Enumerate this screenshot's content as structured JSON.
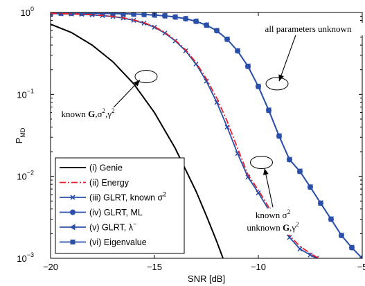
{
  "chart_data": {
    "type": "line",
    "xlabel": "SNR [dB]",
    "ylabel": "P",
    "ylabel_sub": "MD",
    "xlim": [
      -20,
      -5
    ],
    "ylim": [
      0.001,
      1
    ],
    "yscale": "log",
    "x_ticks": [
      -20,
      -15,
      -10,
      -5
    ],
    "x_tick_labels": [
      "−20",
      "−15",
      "−10",
      "−5"
    ],
    "y_ticks": [
      0.001,
      0.01,
      0.1,
      1
    ],
    "y_tick_bases": [
      "10",
      "10",
      "10",
      "10"
    ],
    "y_tick_exps": [
      "−3",
      "−2",
      "−1",
      "0"
    ],
    "grid": false,
    "legend_position": "bottom-left",
    "series": [
      {
        "name": "(i) Genie",
        "color": "#000000",
        "dash": "solid",
        "marker": "none",
        "x": [
          -20,
          -19,
          -18,
          -17,
          -16,
          -15,
          -14,
          -13,
          -12.5,
          -12,
          -11.7
        ],
        "y": [
          0.72,
          0.57,
          0.4,
          0.25,
          0.135,
          0.06,
          0.022,
          0.0066,
          0.0033,
          0.0016,
          0.001
        ]
      },
      {
        "name": "(ii) Energy",
        "color": "#e8202a",
        "dash": "dashdot",
        "marker": "none",
        "x": [
          -20,
          -19.5,
          -19,
          -18.5,
          -18,
          -17.5,
          -17,
          -16.5,
          -16,
          -15.5,
          -15,
          -14.5,
          -14,
          -13.5,
          -13,
          -12.5,
          -12,
          -11.5,
          -11,
          -10.5,
          -10,
          -9.5,
          -9,
          -8.5,
          -8,
          -7.5,
          -7.1
        ],
        "y": [
          0.975,
          0.97,
          0.963,
          0.953,
          0.94,
          0.92,
          0.895,
          0.86,
          0.81,
          0.75,
          0.67,
          0.57,
          0.46,
          0.35,
          0.245,
          0.155,
          0.09,
          0.047,
          0.022,
          0.0105,
          0.0068,
          0.0042,
          0.0028,
          0.0019,
          0.0014,
          0.00115,
          0.001
        ]
      },
      {
        "name": "(iii) GLRT, known σ",
        "name_sup": "2",
        "color": "#2a4fa8",
        "dash": "solid",
        "marker": "x",
        "x": [
          -20,
          -19.5,
          -19,
          -18.5,
          -18,
          -17.5,
          -17,
          -16.5,
          -16,
          -15.5,
          -15,
          -14.5,
          -14,
          -13.5,
          -13,
          -12.5,
          -12,
          -11.5,
          -11,
          -10.5,
          -10,
          -9.5,
          -9,
          -8.5,
          -8,
          -7.5,
          -7.2
        ],
        "y": [
          0.97,
          0.965,
          0.958,
          0.948,
          0.935,
          0.915,
          0.89,
          0.855,
          0.8,
          0.74,
          0.66,
          0.56,
          0.45,
          0.34,
          0.235,
          0.145,
          0.08,
          0.04,
          0.019,
          0.0098,
          0.0063,
          0.0039,
          0.0026,
          0.0018,
          0.0013,
          0.0011,
          0.001
        ]
      },
      {
        "name": "(iv) GLRT, ML",
        "color": "#2a4fa8",
        "dash": "solid",
        "marker": "o",
        "x": [
          -20,
          -19.5,
          -19,
          -18.5,
          -18,
          -17.5,
          -17,
          -16.5,
          -16,
          -15.5,
          -15,
          -14.5,
          -14,
          -13.5,
          -13,
          -12.5,
          -12,
          -11.5,
          -11,
          -10.5,
          -10,
          -9.5,
          -9,
          -8.5,
          -8,
          -7.5,
          -7,
          -6.5,
          -6,
          -5.5,
          -5
        ],
        "y": [
          0.98,
          0.98,
          0.98,
          0.98,
          0.978,
          0.975,
          0.97,
          0.965,
          0.955,
          0.945,
          0.93,
          0.91,
          0.88,
          0.84,
          0.78,
          0.7,
          0.6,
          0.47,
          0.34,
          0.22,
          0.125,
          0.064,
          0.031,
          0.016,
          0.0115,
          0.0074,
          0.0047,
          0.003,
          0.0019,
          0.00135,
          0.001
        ]
      },
      {
        "name": "(v) GLRT, λ",
        "name_sup": "−",
        "color": "#2a4fa8",
        "dash": "solid",
        "marker": "<",
        "x": [
          -20,
          -19.5,
          -19,
          -18.5,
          -18,
          -17.5,
          -17,
          -16.5,
          -16,
          -15.5,
          -15,
          -14.5,
          -14,
          -13.5,
          -13,
          -12.5,
          -12,
          -11.5,
          -11,
          -10.5,
          -10,
          -9.5,
          -9,
          -8.5,
          -8,
          -7.5,
          -7,
          -6.5,
          -6,
          -5.5,
          -5
        ],
        "y": [
          0.98,
          0.98,
          0.98,
          0.98,
          0.978,
          0.975,
          0.97,
          0.965,
          0.955,
          0.945,
          0.93,
          0.91,
          0.88,
          0.84,
          0.78,
          0.7,
          0.6,
          0.47,
          0.34,
          0.22,
          0.125,
          0.064,
          0.031,
          0.016,
          0.0115,
          0.0074,
          0.0047,
          0.003,
          0.0019,
          0.00135,
          0.001
        ]
      },
      {
        "name": "(vi) Eigenvalue",
        "color": "#2a4fa8",
        "dash": "solid",
        "marker": "s",
        "x": [
          -20,
          -19.5,
          -19,
          -18.5,
          -18,
          -17.5,
          -17,
          -16.5,
          -16,
          -15.5,
          -15,
          -14.5,
          -14,
          -13.5,
          -13,
          -12.5,
          -12,
          -11.5,
          -11,
          -10.5,
          -10,
          -9.5,
          -9,
          -8.5,
          -8,
          -7.5,
          -7,
          -6.5,
          -6,
          -5.5,
          -5
        ],
        "y": [
          0.98,
          0.98,
          0.98,
          0.98,
          0.978,
          0.975,
          0.97,
          0.965,
          0.955,
          0.945,
          0.93,
          0.91,
          0.88,
          0.84,
          0.78,
          0.7,
          0.6,
          0.47,
          0.34,
          0.22,
          0.125,
          0.064,
          0.031,
          0.016,
          0.0115,
          0.0074,
          0.0047,
          0.003,
          0.0019,
          0.00135,
          0.001
        ]
      }
    ],
    "annotations": [
      {
        "id": "genie",
        "parts": [
          "known ",
          "G",
          ",σ",
          "2",
          ",γ",
          "2"
        ],
        "ellipse_at": [
          -15.4,
          0.165
        ],
        "text_at": [
          -18.2,
          0.053
        ],
        "arrow_from": [
          -17.0,
          0.068
        ],
        "arrow_to": [
          -15.7,
          0.15
        ]
      },
      {
        "id": "all",
        "text": "all parameters unknown",
        "ellipse_at": [
          -9.1,
          0.135
        ],
        "text_at": [
          -7.6,
          0.58
        ],
        "arrow_from": [
          -8.2,
          0.53
        ],
        "arrow_to": [
          -9.0,
          0.145
        ]
      },
      {
        "id": "glrt",
        "line1": [
          "known σ",
          "2"
        ],
        "line2": [
          "unknown ",
          "G",
          ",γ",
          "2"
        ],
        "ellipse_at": [
          -9.85,
          0.0148
        ],
        "text_at": [
          -9.3,
          0.0031
        ],
        "arrow_from": [
          -9.3,
          0.0042
        ],
        "arrow_to": [
          -9.7,
          0.0125
        ]
      }
    ]
  }
}
